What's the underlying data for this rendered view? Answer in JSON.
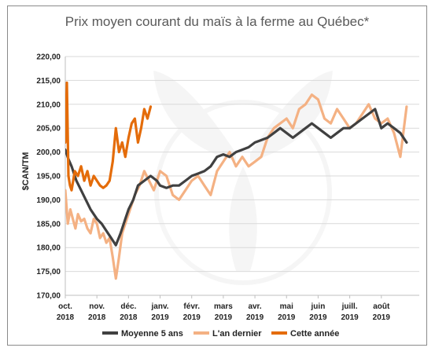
{
  "chart_data": {
    "type": "line",
    "title": "Prix moyen courant du maïs à la ferme au Québec*",
    "ylabel": "$CAN/TM",
    "xlabel": "",
    "ylim": [
      170,
      220
    ],
    "yticks": [
      "170,00",
      "175,00",
      "180,00",
      "185,00",
      "190,00",
      "195,00",
      "200,00",
      "205,00",
      "210,00",
      "215,00",
      "220,00"
    ],
    "x_ticks": [
      {
        "label": [
          "oct.",
          "2018"
        ]
      },
      {
        "label": [
          "nov.",
          "2018"
        ]
      },
      {
        "label": [
          "déc.",
          "2018"
        ]
      },
      {
        "label": [
          "janv.",
          "2019"
        ]
      },
      {
        "label": [
          "févr.",
          "2019"
        ]
      },
      {
        "label": [
          "mars",
          "2019"
        ]
      },
      {
        "label": [
          "avr.",
          "2019"
        ]
      },
      {
        "label": [
          "mai",
          "2019"
        ]
      },
      {
        "label": [
          "juin",
          "2019"
        ]
      },
      {
        "label": [
          "juill.",
          "2019"
        ]
      },
      {
        "label": [
          "août",
          "2019"
        ]
      }
    ],
    "x_unit": "months since oct. 2018",
    "grid": "horizontal",
    "legend_position": "bottom",
    "series": [
      {
        "name": "Moyenne 5 ans",
        "color": "#404040",
        "x": [
          0,
          0.1,
          0.2,
          0.35,
          0.5,
          0.65,
          0.8,
          1.0,
          1.15,
          1.3,
          1.45,
          1.6,
          1.75,
          1.9,
          2.0,
          2.15,
          2.3,
          2.5,
          2.7,
          2.9,
          3.0,
          3.2,
          3.4,
          3.6,
          3.8,
          4.0,
          4.2,
          4.4,
          4.6,
          4.8,
          5.0,
          5.2,
          5.4,
          5.6,
          5.8,
          6.0,
          6.2,
          6.4,
          6.6,
          6.8,
          7.0,
          7.2,
          7.4,
          7.6,
          7.8,
          8.0,
          8.2,
          8.4,
          8.6,
          8.8,
          9.0,
          9.2,
          9.4,
          9.6,
          9.8,
          10.0,
          10.2,
          10.4,
          10.6,
          10.8
        ],
        "y": [
          200.5,
          198.5,
          197,
          194,
          192,
          190,
          188,
          186,
          185,
          183.5,
          182,
          180.5,
          183,
          186,
          188,
          190,
          193,
          194,
          195,
          194,
          193,
          192.5,
          193,
          193,
          194,
          195,
          195.5,
          196,
          197,
          199,
          199.5,
          199,
          200,
          200.5,
          201,
          202,
          202.5,
          203,
          204,
          205,
          204,
          203,
          204,
          205,
          206,
          205,
          204,
          203,
          204,
          205,
          205,
          206,
          207,
          208,
          209,
          205,
          206,
          205,
          204,
          202
        ]
      },
      {
        "name": "L'an dernier",
        "color": "#f4b183",
        "x": [
          0,
          0.08,
          0.16,
          0.24,
          0.32,
          0.4,
          0.5,
          0.6,
          0.7,
          0.8,
          0.9,
          1.0,
          1.1,
          1.2,
          1.3,
          1.4,
          1.5,
          1.6,
          1.7,
          1.8,
          1.9,
          2.0,
          2.1,
          2.2,
          2.35,
          2.5,
          2.65,
          2.8,
          3.0,
          3.2,
          3.4,
          3.6,
          3.8,
          4.0,
          4.2,
          4.4,
          4.6,
          4.8,
          5.0,
          5.2,
          5.4,
          5.6,
          5.8,
          6.0,
          6.2,
          6.4,
          6.6,
          6.8,
          7.0,
          7.2,
          7.4,
          7.6,
          7.8,
          8.0,
          8.2,
          8.4,
          8.6,
          8.8,
          9.0,
          9.2,
          9.4,
          9.6,
          9.8,
          10.0,
          10.2,
          10.4,
          10.6,
          10.8
        ],
        "y": [
          192,
          185,
          188,
          186,
          184,
          187,
          185.5,
          186,
          184,
          183,
          186,
          185,
          182,
          183,
          181,
          182,
          178,
          173.5,
          178,
          183,
          185,
          187,
          189,
          191,
          193,
          196,
          194,
          192,
          196,
          195,
          191,
          190,
          192,
          194,
          195,
          193,
          191,
          196,
          198,
          200,
          197,
          199,
          197,
          198,
          199,
          203,
          205,
          206,
          207,
          205,
          209,
          210,
          212,
          211,
          207,
          206,
          209,
          207,
          205,
          206,
          208,
          210,
          207,
          206,
          207,
          204,
          199,
          209.5
        ]
      },
      {
        "name": "Cette année",
        "color": "#e46c0a",
        "x": [
          0,
          0.05,
          0.1,
          0.15,
          0.2,
          0.3,
          0.4,
          0.5,
          0.6,
          0.7,
          0.8,
          0.9,
          1.0,
          1.1,
          1.2,
          1.3,
          1.4,
          1.5,
          1.6,
          1.7,
          1.8,
          1.9,
          2.0,
          2.1,
          2.2,
          2.3,
          2.4,
          2.5,
          2.6,
          2.7
        ],
        "y": [
          202,
          214.5,
          195,
          193,
          192,
          196,
          195,
          197,
          194,
          196,
          193,
          195,
          194,
          193,
          192.5,
          193,
          194,
          198,
          205,
          200,
          202,
          199,
          203,
          206,
          207,
          202,
          205,
          209,
          207,
          209.5
        ]
      }
    ]
  }
}
